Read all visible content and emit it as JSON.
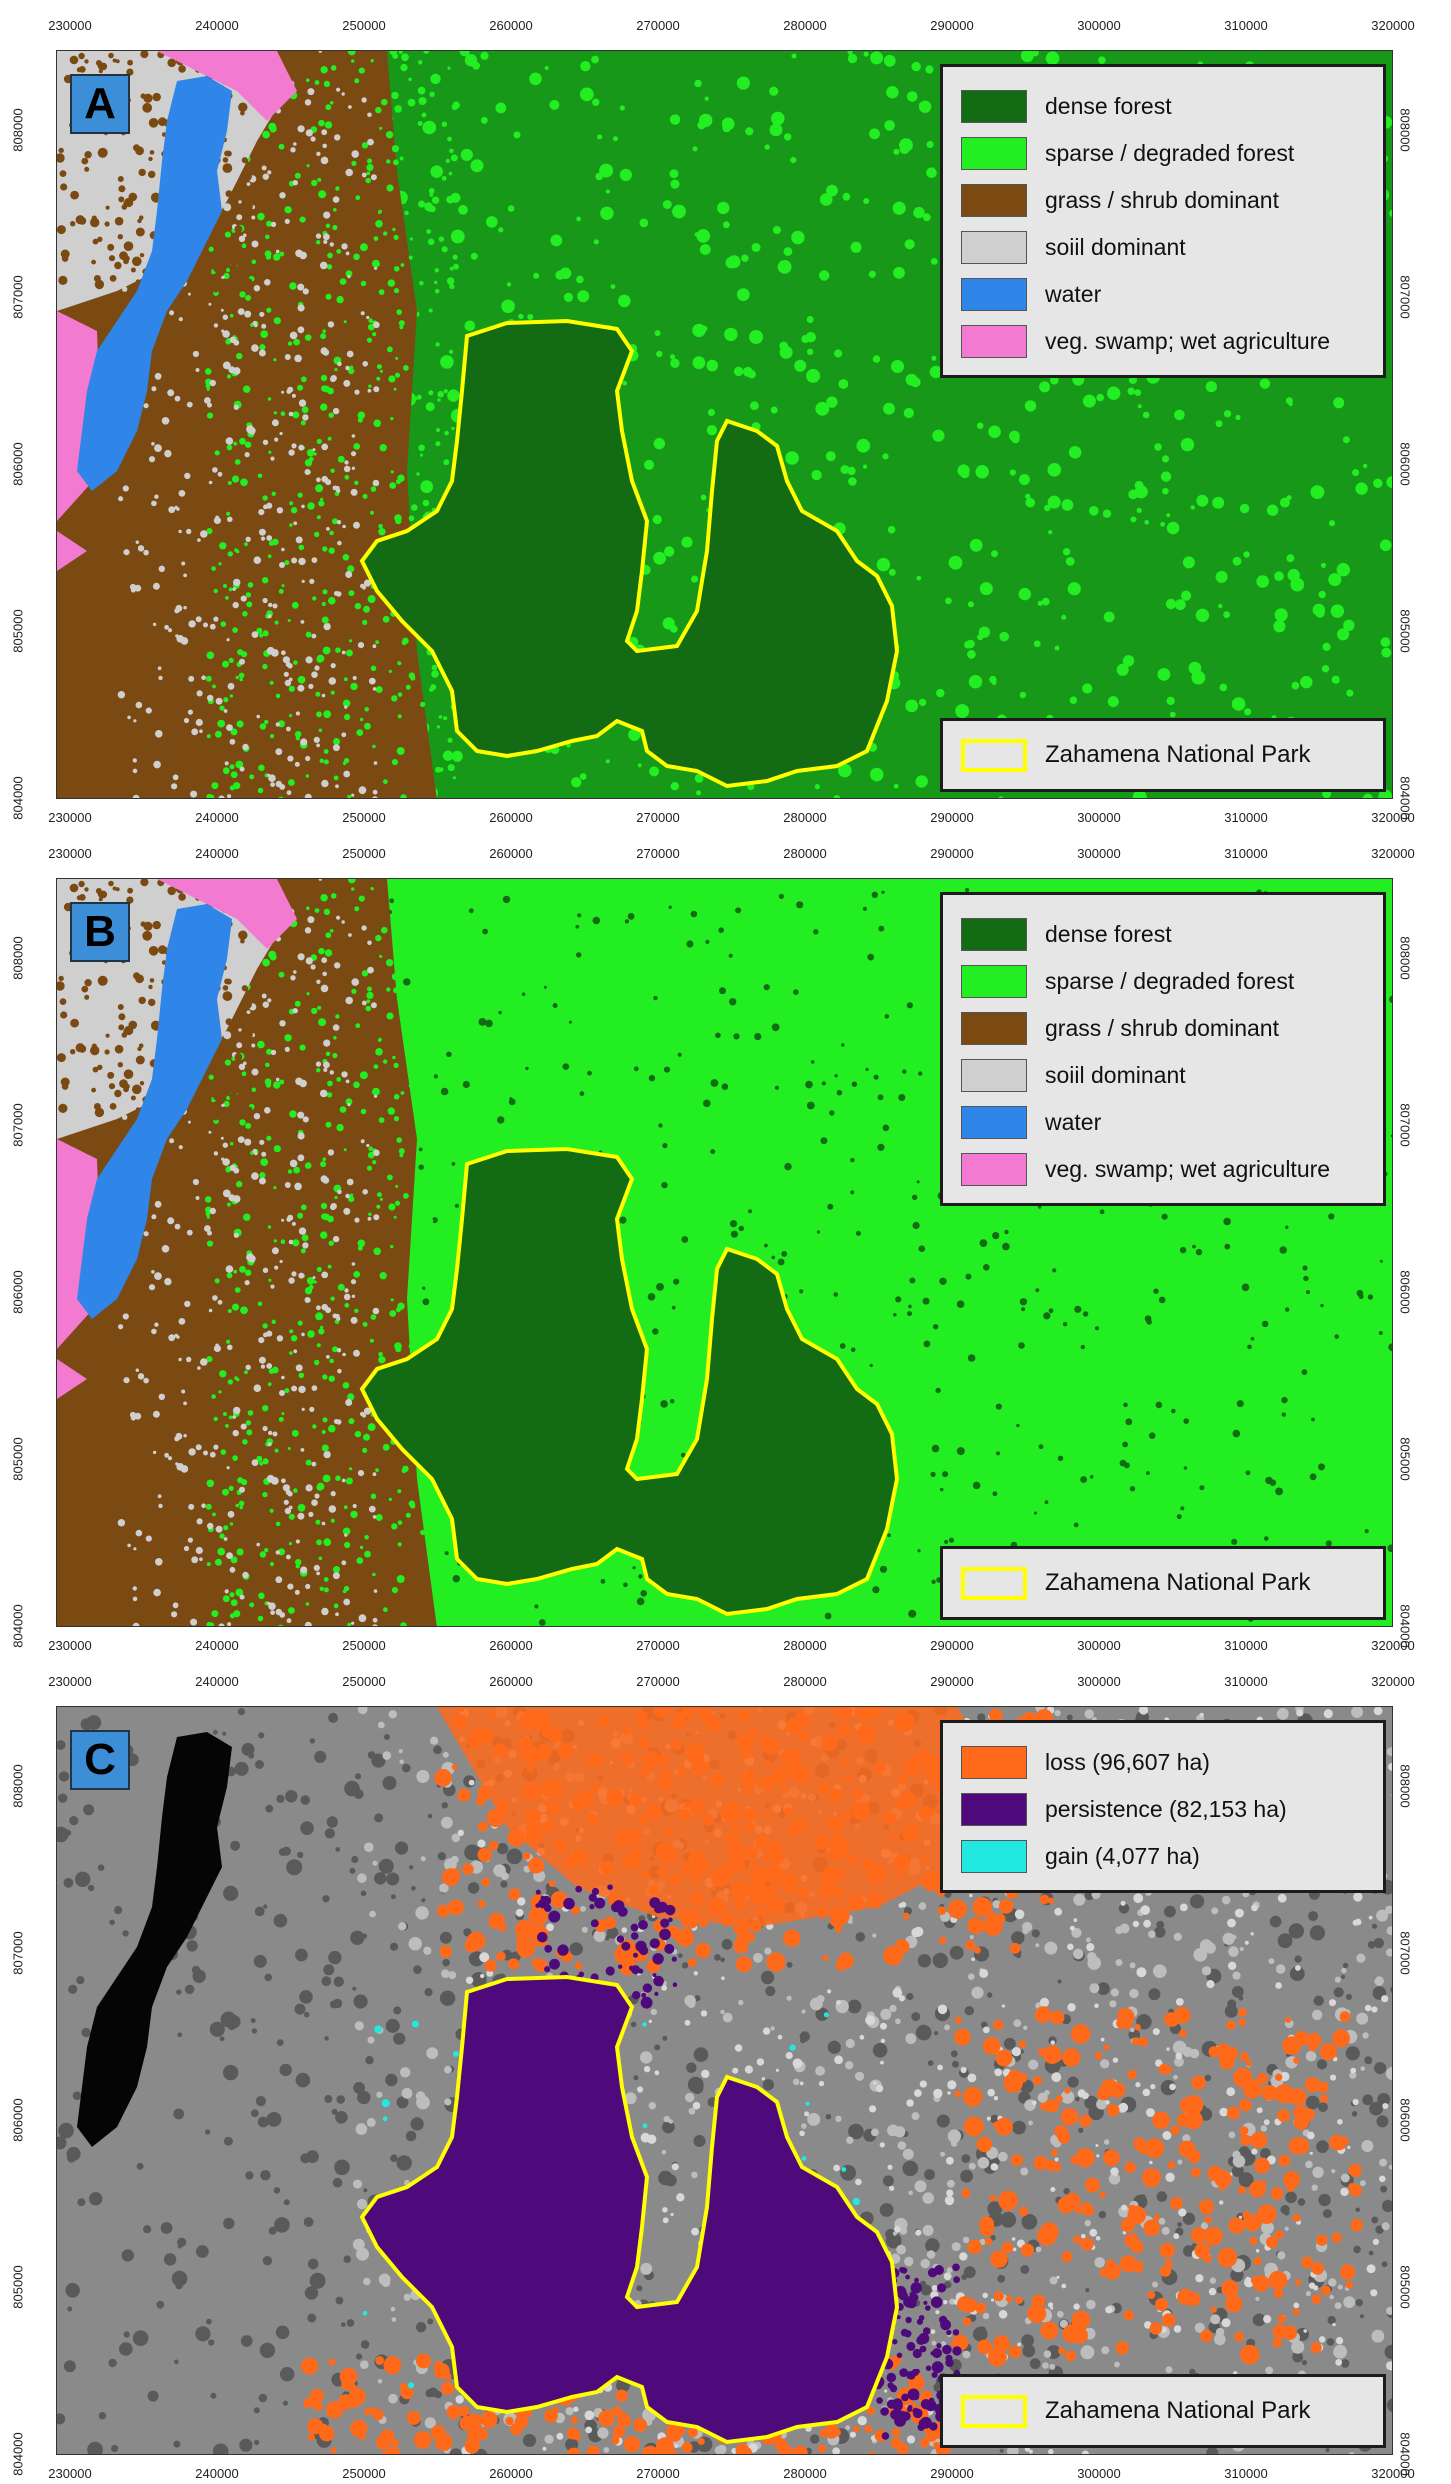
{
  "panels": [
    {
      "id": "A",
      "letter": "A",
      "style": "class"
    },
    {
      "id": "B",
      "letter": "B",
      "style": "class"
    },
    {
      "id": "C",
      "letter": "C",
      "style": "change"
    }
  ],
  "legend_class": {
    "items": [
      {
        "label": "dense forest",
        "color": "#136b13"
      },
      {
        "label": "sparse / degraded forest",
        "color": "#22ee22"
      },
      {
        "label": "grass / shrub dominant",
        "color": "#7a4a12"
      },
      {
        "label": "soiil dominant",
        "color": "#cfcfcf"
      },
      {
        "label": "water",
        "color": "#2f86e8"
      },
      {
        "label": "veg. swamp; wet agriculture",
        "color": "#f27ad0"
      }
    ]
  },
  "legend_change": {
    "items": [
      {
        "label": "loss (96,607 ha)",
        "color": "#ff6a1a"
      },
      {
        "label": "persistence (82,153 ha)",
        "color": "#4e0a7a"
      },
      {
        "label": "gain (4,077 ha)",
        "color": "#21e8e0"
      }
    ]
  },
  "park_label": "Zahamena National Park",
  "park_outline_color": "#ffff00",
  "x_ticks": [
    "230000",
    "240000",
    "250000",
    "260000",
    "270000",
    "280000",
    "290000",
    "300000",
    "310000",
    "320000"
  ],
  "y_ticks": [
    "808000",
    "807000",
    "806000",
    "805000",
    "804000"
  ]
}
